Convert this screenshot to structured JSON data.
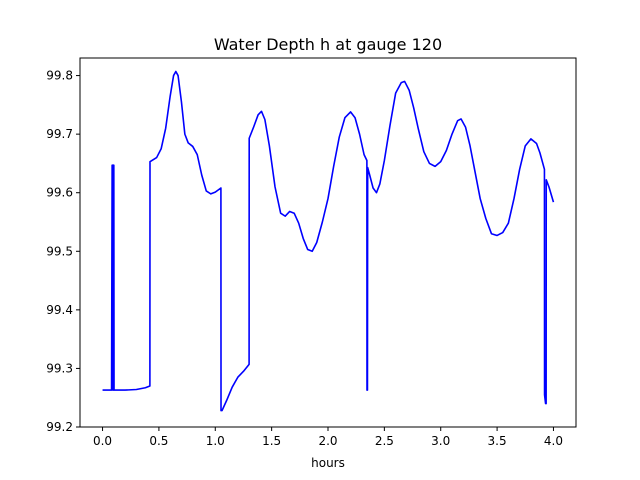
{
  "chart_data": {
    "type": "line",
    "title": "Water Depth h at gauge 120",
    "xlabel": "hours",
    "ylabel": "",
    "xlim": [
      -0.2,
      4.2
    ],
    "ylim": [
      99.2,
      99.83
    ],
    "xticks": [
      0.0,
      0.5,
      1.0,
      1.5,
      2.0,
      2.5,
      3.0,
      3.5,
      4.0
    ],
    "xtick_labels": [
      "0.0",
      "0.5",
      "1.0",
      "1.5",
      "2.0",
      "2.5",
      "3.0",
      "3.5",
      "4.0"
    ],
    "yticks": [
      99.2,
      99.3,
      99.4,
      99.5,
      99.6,
      99.7,
      99.8
    ],
    "ytick_labels": [
      "99.2",
      "99.3",
      "99.4",
      "99.5",
      "99.6",
      "99.7",
      "99.8"
    ],
    "grid": false,
    "series": [
      {
        "color": "#0000ff",
        "points": [
          [
            0.0,
            99.263
          ],
          [
            0.08,
            99.263
          ],
          [
            0.085,
            99.647
          ],
          [
            0.09,
            99.647
          ],
          [
            0.092,
            99.263
          ],
          [
            0.095,
            99.647
          ],
          [
            0.1,
            99.647
          ],
          [
            0.102,
            99.263
          ],
          [
            0.2,
            99.263
          ],
          [
            0.3,
            99.264
          ],
          [
            0.38,
            99.267
          ],
          [
            0.42,
            99.27
          ],
          [
            0.421,
            99.653
          ],
          [
            0.48,
            99.66
          ],
          [
            0.52,
            99.675
          ],
          [
            0.56,
            99.71
          ],
          [
            0.6,
            99.765
          ],
          [
            0.63,
            99.8
          ],
          [
            0.65,
            99.807
          ],
          [
            0.67,
            99.8
          ],
          [
            0.7,
            99.755
          ],
          [
            0.73,
            99.7
          ],
          [
            0.76,
            99.685
          ],
          [
            0.8,
            99.679
          ],
          [
            0.84,
            99.665
          ],
          [
            0.88,
            99.63
          ],
          [
            0.92,
            99.603
          ],
          [
            0.96,
            99.598
          ],
          [
            1.0,
            99.601
          ],
          [
            1.05,
            99.608
          ],
          [
            1.051,
            99.228
          ],
          [
            1.06,
            99.228
          ],
          [
            1.1,
            99.245
          ],
          [
            1.15,
            99.268
          ],
          [
            1.2,
            99.285
          ],
          [
            1.25,
            99.295
          ],
          [
            1.3,
            99.307
          ],
          [
            1.301,
            99.693
          ],
          [
            1.34,
            99.712
          ],
          [
            1.38,
            99.733
          ],
          [
            1.41,
            99.739
          ],
          [
            1.44,
            99.725
          ],
          [
            1.48,
            99.68
          ],
          [
            1.53,
            99.61
          ],
          [
            1.58,
            99.565
          ],
          [
            1.62,
            99.56
          ],
          [
            1.66,
            99.568
          ],
          [
            1.7,
            99.565
          ],
          [
            1.74,
            99.548
          ],
          [
            1.78,
            99.522
          ],
          [
            1.82,
            99.503
          ],
          [
            1.86,
            99.5
          ],
          [
            1.9,
            99.515
          ],
          [
            1.95,
            99.55
          ],
          [
            2.0,
            99.59
          ],
          [
            2.05,
            99.645
          ],
          [
            2.1,
            99.695
          ],
          [
            2.15,
            99.728
          ],
          [
            2.2,
            99.738
          ],
          [
            2.24,
            99.728
          ],
          [
            2.28,
            99.7
          ],
          [
            2.32,
            99.665
          ],
          [
            2.345,
            99.655
          ],
          [
            2.346,
            99.263
          ],
          [
            2.35,
            99.263
          ],
          [
            2.352,
            99.643
          ],
          [
            2.37,
            99.63
          ],
          [
            2.4,
            99.608
          ],
          [
            2.43,
            99.6
          ],
          [
            2.46,
            99.615
          ],
          [
            2.5,
            99.655
          ],
          [
            2.55,
            99.715
          ],
          [
            2.6,
            99.77
          ],
          [
            2.65,
            99.788
          ],
          [
            2.68,
            99.79
          ],
          [
            2.72,
            99.775
          ],
          [
            2.76,
            99.745
          ],
          [
            2.8,
            99.71
          ],
          [
            2.85,
            99.67
          ],
          [
            2.9,
            99.65
          ],
          [
            2.95,
            99.645
          ],
          [
            3.0,
            99.653
          ],
          [
            3.05,
            99.672
          ],
          [
            3.1,
            99.7
          ],
          [
            3.15,
            99.723
          ],
          [
            3.18,
            99.726
          ],
          [
            3.22,
            99.712
          ],
          [
            3.26,
            99.68
          ],
          [
            3.3,
            99.64
          ],
          [
            3.35,
            99.59
          ],
          [
            3.4,
            99.556
          ],
          [
            3.45,
            99.53
          ],
          [
            3.5,
            99.527
          ],
          [
            3.55,
            99.532
          ],
          [
            3.6,
            99.548
          ],
          [
            3.65,
            99.59
          ],
          [
            3.7,
            99.64
          ],
          [
            3.75,
            99.68
          ],
          [
            3.8,
            99.692
          ],
          [
            3.85,
            99.684
          ],
          [
            3.88,
            99.668
          ],
          [
            3.92,
            99.64
          ],
          [
            3.921,
            99.255
          ],
          [
            3.93,
            99.24
          ],
          [
            3.935,
            99.24
          ],
          [
            3.936,
            99.622
          ],
          [
            3.96,
            99.61
          ],
          [
            4.0,
            99.584
          ]
        ]
      }
    ]
  }
}
